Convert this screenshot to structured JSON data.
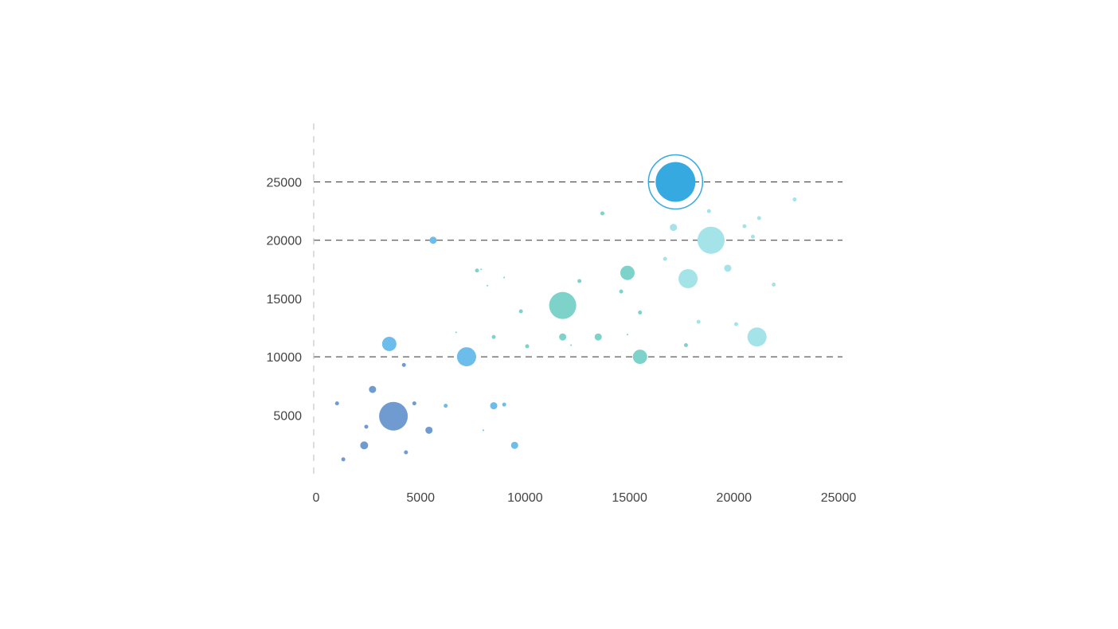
{
  "chart_data": {
    "type": "scatter",
    "variant": "bubble",
    "title": "",
    "xlabel": "",
    "ylabel": "",
    "xlim": [
      0,
      25000
    ],
    "ylim": [
      0,
      30000
    ],
    "x_ticks": [
      0,
      5000,
      10000,
      15000,
      20000,
      25000
    ],
    "x_tick_labels": [
      "0",
      "5000",
      "10000",
      "15000",
      "20000",
      "25000"
    ],
    "y_ticks": [
      5000,
      10000,
      15000,
      20000,
      25000
    ],
    "y_tick_labels": [
      "5000",
      "10000",
      "15000",
      "20000",
      "25000"
    ],
    "dashed_gridlines_y": [
      10000,
      20000,
      25000
    ],
    "grid": "partial-horizontal-dashed",
    "legend": "none",
    "colors": {
      "dark_blue": "#6f9bd1",
      "light_blue": "#6cbcec",
      "bright_blue": "#36a9e1",
      "teal": "#7dd3c9",
      "aqua": "#a4e3e8",
      "gridline": "#333333",
      "axis": "#bbbbbb",
      "tick_text": "#444444"
    },
    "points": [
      {
        "x": 3700,
        "y": 4900,
        "size": 18,
        "color": "dark_blue"
      },
      {
        "x": 2700,
        "y": 7200,
        "size": 4.5,
        "color": "dark_blue"
      },
      {
        "x": 2300,
        "y": 2400,
        "size": 5,
        "color": "dark_blue"
      },
      {
        "x": 5400,
        "y": 3700,
        "size": 4.5,
        "color": "dark_blue"
      },
      {
        "x": 1000,
        "y": 6000,
        "size": 2.5,
        "color": "dark_blue"
      },
      {
        "x": 2400,
        "y": 4000,
        "size": 2.5,
        "color": "dark_blue"
      },
      {
        "x": 1300,
        "y": 1200,
        "size": 2.5,
        "color": "dark_blue"
      },
      {
        "x": 4700,
        "y": 6000,
        "size": 2.5,
        "color": "dark_blue"
      },
      {
        "x": 4300,
        "y": 1800,
        "size": 2.5,
        "color": "dark_blue"
      },
      {
        "x": 4200,
        "y": 9300,
        "size": 2.5,
        "color": "dark_blue"
      },
      {
        "x": 3500,
        "y": 11100,
        "size": 9,
        "color": "light_blue"
      },
      {
        "x": 7200,
        "y": 10000,
        "size": 12,
        "color": "light_blue"
      },
      {
        "x": 5600,
        "y": 20000,
        "size": 4.5,
        "color": "light_blue"
      },
      {
        "x": 8500,
        "y": 5800,
        "size": 4.5,
        "color": "light_blue"
      },
      {
        "x": 9500,
        "y": 2400,
        "size": 4.5,
        "color": "light_blue"
      },
      {
        "x": 6200,
        "y": 5800,
        "size": 2.5,
        "color": "light_blue"
      },
      {
        "x": 9000,
        "y": 5900,
        "size": 2.5,
        "color": "light_blue"
      },
      {
        "x": 8000,
        "y": 3700,
        "size": 1,
        "color": "light_blue"
      },
      {
        "x": 17200,
        "y": 25000,
        "size": 25,
        "color": "bright_blue",
        "highlighted": true
      },
      {
        "x": 11800,
        "y": 14400,
        "size": 17,
        "color": "teal"
      },
      {
        "x": 14900,
        "y": 17200,
        "size": 9,
        "color": "teal"
      },
      {
        "x": 15500,
        "y": 10000,
        "size": 9,
        "color": "teal"
      },
      {
        "x": 11800,
        "y": 11700,
        "size": 4.5,
        "color": "teal"
      },
      {
        "x": 13500,
        "y": 11700,
        "size": 4.5,
        "color": "teal"
      },
      {
        "x": 7700,
        "y": 17400,
        "size": 2.5,
        "color": "teal"
      },
      {
        "x": 8500,
        "y": 11700,
        "size": 2.5,
        "color": "teal"
      },
      {
        "x": 9800,
        "y": 13900,
        "size": 2.5,
        "color": "teal"
      },
      {
        "x": 10100,
        "y": 10900,
        "size": 2.5,
        "color": "teal"
      },
      {
        "x": 12600,
        "y": 16500,
        "size": 2.5,
        "color": "teal"
      },
      {
        "x": 13700,
        "y": 22300,
        "size": 2.5,
        "color": "teal"
      },
      {
        "x": 14600,
        "y": 15600,
        "size": 2.5,
        "color": "teal"
      },
      {
        "x": 15500,
        "y": 13800,
        "size": 2.5,
        "color": "teal"
      },
      {
        "x": 17700,
        "y": 11000,
        "size": 2.5,
        "color": "teal"
      },
      {
        "x": 6700,
        "y": 12100,
        "size": 1,
        "color": "teal"
      },
      {
        "x": 7900,
        "y": 17500,
        "size": 1,
        "color": "teal"
      },
      {
        "x": 8200,
        "y": 16100,
        "size": 1,
        "color": "teal"
      },
      {
        "x": 9000,
        "y": 16800,
        "size": 1,
        "color": "teal"
      },
      {
        "x": 12200,
        "y": 11000,
        "size": 1,
        "color": "teal"
      },
      {
        "x": 14900,
        "y": 11900,
        "size": 1,
        "color": "teal"
      },
      {
        "x": 18900,
        "y": 20000,
        "size": 17,
        "color": "aqua"
      },
      {
        "x": 17800,
        "y": 16700,
        "size": 12,
        "color": "aqua"
      },
      {
        "x": 21100,
        "y": 11700,
        "size": 12,
        "color": "aqua"
      },
      {
        "x": 17100,
        "y": 21100,
        "size": 4.5,
        "color": "aqua"
      },
      {
        "x": 19700,
        "y": 17600,
        "size": 4.5,
        "color": "aqua"
      },
      {
        "x": 16700,
        "y": 18400,
        "size": 2.5,
        "color": "aqua"
      },
      {
        "x": 18800,
        "y": 22500,
        "size": 2.5,
        "color": "aqua"
      },
      {
        "x": 18300,
        "y": 13000,
        "size": 2.5,
        "color": "aqua"
      },
      {
        "x": 20100,
        "y": 12800,
        "size": 2.5,
        "color": "aqua"
      },
      {
        "x": 20500,
        "y": 21200,
        "size": 2.5,
        "color": "aqua"
      },
      {
        "x": 20900,
        "y": 20300,
        "size": 2.5,
        "color": "aqua"
      },
      {
        "x": 21200,
        "y": 21900,
        "size": 2.5,
        "color": "aqua"
      },
      {
        "x": 21900,
        "y": 16200,
        "size": 2.5,
        "color": "aqua"
      },
      {
        "x": 22900,
        "y": 23500,
        "size": 2.5,
        "color": "aqua"
      }
    ]
  }
}
